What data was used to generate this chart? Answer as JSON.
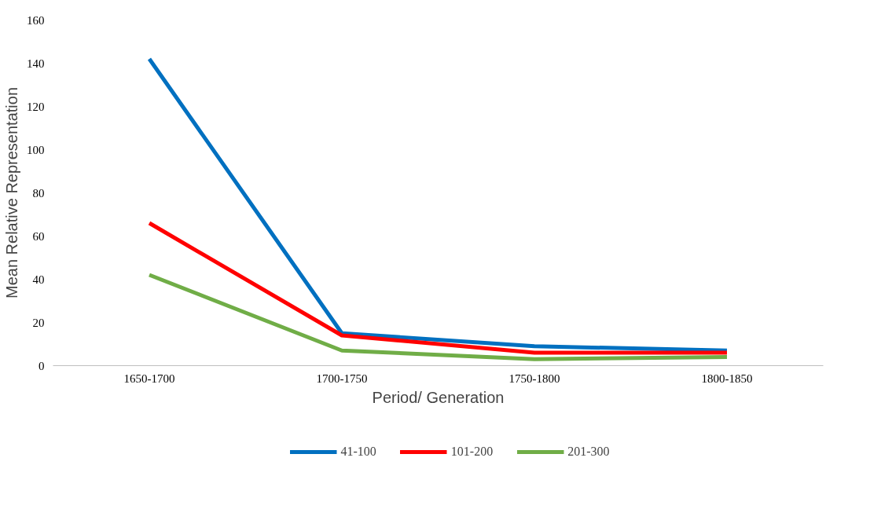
{
  "chart_data": {
    "type": "line",
    "xlabel": "Period/ Generation",
    "ylabel": "Mean Relative Representation",
    "categories": [
      "1650-1700",
      "1700-1750",
      "1750-1800",
      "1800-1850"
    ],
    "series": [
      {
        "name": "41-100",
        "color": "#0070c0",
        "values": [
          142,
          15,
          9,
          7
        ]
      },
      {
        "name": "101-200",
        "color": "#ff0000",
        "values": [
          66,
          14,
          6,
          6
        ]
      },
      {
        "name": "201-300",
        "color": "#70ad47",
        "values": [
          42,
          7,
          3,
          4
        ]
      }
    ],
    "ylim": [
      0,
      160
    ],
    "yticks": [
      0,
      20,
      40,
      60,
      80,
      100,
      120,
      140,
      160
    ],
    "grid": false,
    "legend": "bottom",
    "marker": "none",
    "line_style": "solid"
  }
}
